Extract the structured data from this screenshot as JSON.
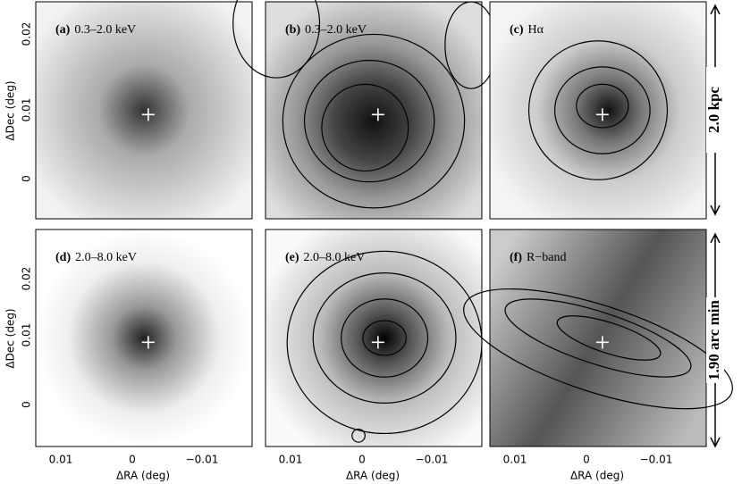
{
  "panels": [
    {
      "id": "(a)",
      "band": "0.3–2.0 keV"
    },
    {
      "id": "(b)",
      "band": "0.3–2.0 keV"
    },
    {
      "id": "(c)",
      "band": "Hα"
    },
    {
      "id": "(d)",
      "band": "2.0–8.0 keV"
    },
    {
      "id": "(e)",
      "band": "2.0–8.0 keV"
    },
    {
      "id": "(f)",
      "band": "R−band"
    }
  ],
  "y_axis": {
    "label": "ΔDec (deg)",
    "ticks": [
      "0.02",
      "0.01",
      "0"
    ]
  },
  "x_axis": {
    "label": "ΔRA (deg)",
    "ticks": [
      "0.01",
      "0",
      "−0.01"
    ]
  },
  "scale_bars": [
    {
      "label": "2.0 kpc"
    },
    {
      "label": "1.90 arc min"
    }
  ]
}
